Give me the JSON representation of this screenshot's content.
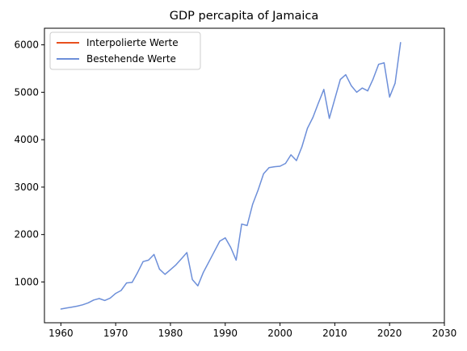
{
  "chart_data": {
    "type": "line",
    "title": "GDP percapita of Jamaica",
    "xlabel": "",
    "ylabel": "",
    "xlim": [
      1957,
      2030
    ],
    "ylim": [
      140,
      6350
    ],
    "xticks": [
      1960,
      1970,
      1980,
      1990,
      2000,
      2010,
      2020,
      2030
    ],
    "yticks": [
      1000,
      2000,
      3000,
      4000,
      5000,
      6000
    ],
    "grid": false,
    "legend_position": "upper-left",
    "series": [
      {
        "name": "Interpolierte Werte",
        "color": "#e8501e",
        "x": [],
        "y": []
      },
      {
        "name": "Bestehende Werte",
        "color": "#6d8fd9",
        "x": [
          1960,
          1961,
          1962,
          1963,
          1964,
          1965,
          1966,
          1967,
          1968,
          1969,
          1970,
          1971,
          1972,
          1973,
          1974,
          1975,
          1976,
          1977,
          1978,
          1979,
          1980,
          1981,
          1982,
          1983,
          1984,
          1985,
          1986,
          1987,
          1988,
          1989,
          1990,
          1991,
          1992,
          1993,
          1994,
          1995,
          1996,
          1997,
          1998,
          1999,
          2000,
          2001,
          2002,
          2003,
          2004,
          2005,
          2006,
          2007,
          2008,
          2009,
          2010,
          2011,
          2012,
          2013,
          2014,
          2015,
          2016,
          2017,
          2018,
          2019,
          2020,
          2021,
          2022
        ],
        "y": [
          430,
          450,
          470,
          490,
          520,
          560,
          620,
          650,
          610,
          660,
          760,
          820,
          980,
          990,
          1200,
          1430,
          1460,
          1580,
          1270,
          1160,
          1260,
          1360,
          1490,
          1620,
          1050,
          920,
          1200,
          1420,
          1640,
          1860,
          1930,
          1730,
          1460,
          2220,
          2190,
          2640,
          2940,
          3280,
          3410,
          3430,
          3440,
          3500,
          3680,
          3560,
          3850,
          4240,
          4470,
          4770,
          5060,
          4450,
          4860,
          5270,
          5370,
          5140,
          5000,
          5090,
          5030,
          5280,
          5590,
          5620,
          4900,
          5190,
          6050
        ]
      }
    ]
  }
}
